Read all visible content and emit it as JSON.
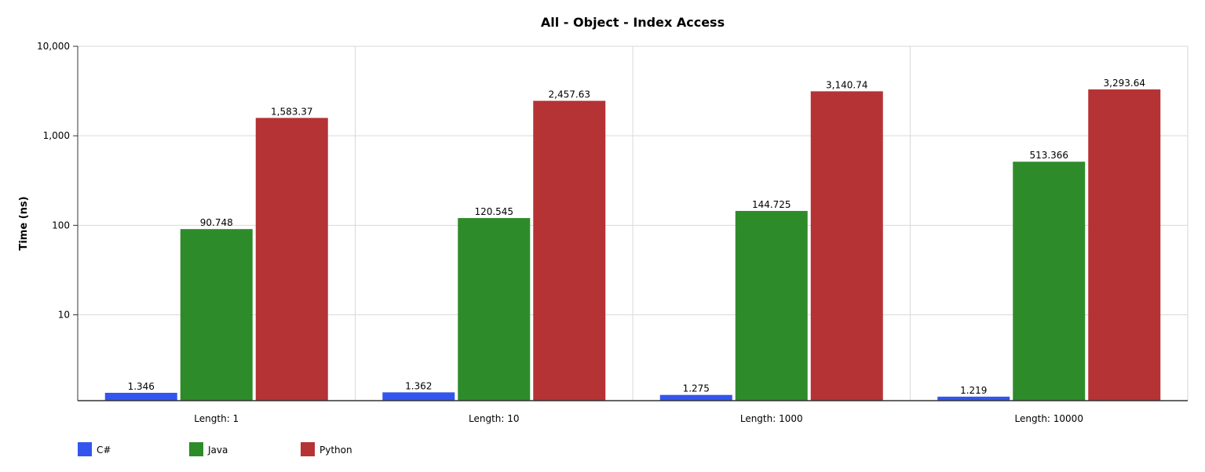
{
  "chart_data": {
    "type": "bar",
    "title": "All - Object - Index Access",
    "xlabel": "",
    "ylabel": "Time (ns)",
    "y_scale": "log",
    "ylim": [
      1.1,
      10000
    ],
    "y_ticks": [
      10,
      100,
      1000,
      10000
    ],
    "y_tick_labels": [
      "10",
      "100",
      "1,000",
      "10,000"
    ],
    "grid": true,
    "legend_position": "bottom-left",
    "categories": [
      "Length: 1",
      "Length: 10",
      "Length: 1000",
      "Length: 10000"
    ],
    "series": [
      {
        "name": "C#",
        "color": "#3355ee",
        "values": [
          1.346,
          1.362,
          1.275,
          1.219
        ],
        "labels": [
          "1.346",
          "1.362",
          "1.275",
          "1.219"
        ]
      },
      {
        "name": "Java",
        "color": "#2e8b2a",
        "values": [
          90.748,
          120.545,
          144.725,
          513.366
        ],
        "labels": [
          "90.748",
          "120.545",
          "144.725",
          "513.366"
        ]
      },
      {
        "name": "Python",
        "color": "#b53235",
        "values": [
          1583.37,
          2457.63,
          3140.74,
          3293.64
        ],
        "labels": [
          "1,583.37",
          "2,457.63",
          "3,140.74",
          "3,293.64"
        ]
      }
    ]
  }
}
